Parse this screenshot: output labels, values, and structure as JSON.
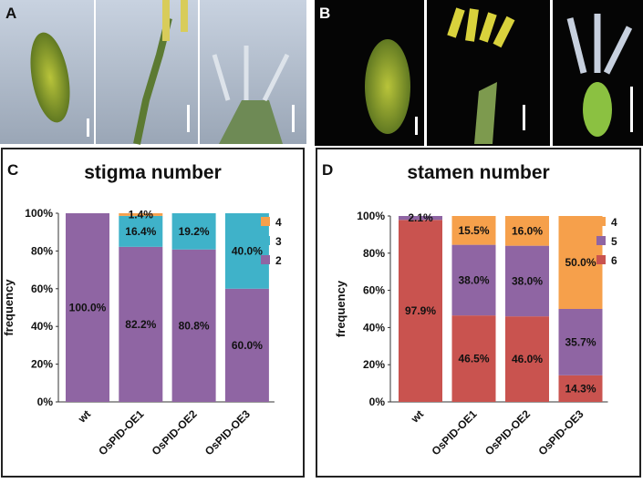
{
  "photo_panels": [
    {
      "label": "A"
    },
    {
      "label": "B"
    }
  ],
  "chart_data": [
    {
      "type": "stacked-bar",
      "panel_label": "C",
      "title": "stigma number",
      "y_label": "frequency",
      "categories": [
        "wt",
        "OsPID-OE1",
        "OsPID-OE2",
        "OsPID-OE3"
      ],
      "series": [
        {
          "name": "2",
          "color": "#8f65a3",
          "values": [
            100,
            82.2,
            80.8,
            60
          ],
          "value_labels": [
            "100.0%",
            "82.2%",
            "80.8%",
            "60.0%"
          ]
        },
        {
          "name": "3",
          "color": "#3fb2c9",
          "values": [
            0,
            16.4,
            19.2,
            40
          ],
          "value_labels": [
            null,
            "16.4%",
            "19.2%",
            "40.0%"
          ]
        },
        {
          "name": "4",
          "color": "#f6a04b",
          "values": [
            0,
            1.4,
            0,
            0
          ],
          "value_labels": [
            null,
            "1.4%",
            null,
            null
          ]
        }
      ],
      "ylim": [
        0,
        100
      ],
      "yticks": [
        {
          "value": 0,
          "label": "0%"
        },
        {
          "value": 20,
          "label": "20%"
        },
        {
          "value": 40,
          "label": "40%"
        },
        {
          "value": 60,
          "label": "60%"
        },
        {
          "value": 80,
          "label": "80%"
        },
        {
          "value": 100,
          "label": "100%"
        }
      ]
    },
    {
      "type": "stacked-bar",
      "panel_label": "D",
      "title": "stamen number",
      "y_label": "frequency",
      "categories": [
        "wt",
        "OsPID-OE1",
        "OsPID-OE2",
        "OsPID-OE3"
      ],
      "series": [
        {
          "name": "6",
          "color": "#c9534f",
          "values": [
            97.9,
            46.5,
            46.0,
            14.3
          ],
          "value_labels": [
            "97.9%",
            "46.5%",
            "46.0%",
            "14.3%"
          ]
        },
        {
          "name": "5",
          "color": "#8f65a3",
          "values": [
            2.1,
            38.0,
            38.0,
            35.7
          ],
          "value_labels": [
            "2.1%",
            "38.0%",
            "38.0%",
            "35.7%"
          ]
        },
        {
          "name": "4",
          "color": "#f6a04b",
          "values": [
            0,
            15.5,
            16.0,
            50.0
          ],
          "value_labels": [
            null,
            "15.5%",
            "16.0%",
            "50.0%"
          ]
        }
      ],
      "ylim": [
        0,
        100
      ],
      "yticks": [
        {
          "value": 0,
          "label": "0%"
        },
        {
          "value": 20,
          "label": "20%"
        },
        {
          "value": 40,
          "label": "40%"
        },
        {
          "value": 60,
          "label": "60%"
        },
        {
          "value": 80,
          "label": "80%"
        },
        {
          "value": 100,
          "label": "100%"
        }
      ]
    }
  ]
}
